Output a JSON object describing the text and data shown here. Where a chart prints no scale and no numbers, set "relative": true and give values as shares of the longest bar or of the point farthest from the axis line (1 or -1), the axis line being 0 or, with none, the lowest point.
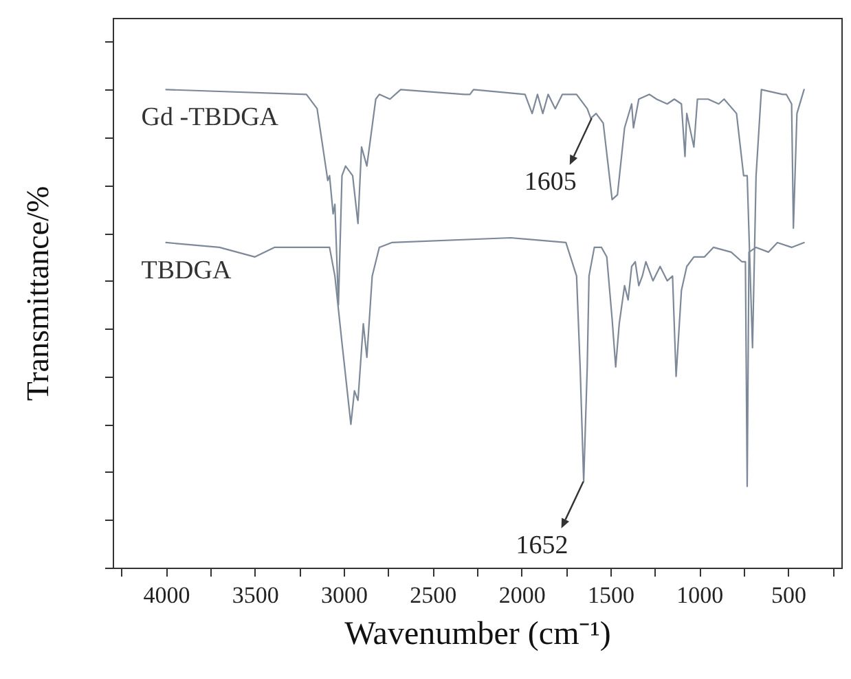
{
  "chart_data": {
    "type": "line",
    "relative": true,
    "xlabel": "Wavenumber (cm⁻¹)",
    "ylabel": "Transmittance/%",
    "xlim": [
      4300,
      200
    ],
    "xticks": [
      {
        "value": 4250,
        "label": null
      },
      4000,
      {
        "value": 3750,
        "label": null
      },
      3500,
      {
        "value": 3250,
        "label": null
      },
      3000,
      {
        "value": 2750,
        "label": null
      },
      2500,
      {
        "value": 2250,
        "label": null
      },
      2000,
      {
        "value": 1750,
        "label": null
      },
      1500,
      {
        "value": 1250,
        "label": null
      },
      1000,
      {
        "value": 750,
        "label": null
      },
      500,
      {
        "value": 250,
        "label": null
      }
    ],
    "series": [
      {
        "name": "Gd -TBDGA",
        "color": "#7d8898",
        "x": [
          4000,
          3210,
          3150,
          3090,
          3080,
          3060,
          3050,
          3030,
          3010,
          2990,
          2950,
          2920,
          2900,
          2870,
          2820,
          2800,
          2740,
          2680,
          2320,
          2290,
          2270,
          1980,
          1940,
          1910,
          1880,
          1850,
          1810,
          1770,
          1690,
          1630,
          1610,
          1580,
          1540,
          1490,
          1460,
          1420,
          1380,
          1370,
          1340,
          1280,
          1240,
          1180,
          1140,
          1100,
          1080,
          1070,
          1030,
          1010,
          950,
          890,
          860,
          790,
          750,
          730,
          700,
          680,
          650,
          530,
          510,
          480,
          470,
          450,
          410
        ],
        "values": [
          1.0,
          0.99,
          0.96,
          0.81,
          0.82,
          0.74,
          0.76,
          0.55,
          0.82,
          0.84,
          0.82,
          0.72,
          0.88,
          0.84,
          0.98,
          0.99,
          0.98,
          1.0,
          0.99,
          0.99,
          1.0,
          0.99,
          0.95,
          0.99,
          0.95,
          0.99,
          0.96,
          0.99,
          0.99,
          0.96,
          0.94,
          0.95,
          0.93,
          0.77,
          0.78,
          0.92,
          0.97,
          0.92,
          0.98,
          0.99,
          0.98,
          0.97,
          0.98,
          0.97,
          0.86,
          0.95,
          0.88,
          0.98,
          0.98,
          0.97,
          0.98,
          0.95,
          0.82,
          0.82,
          0.46,
          0.82,
          1.0,
          0.99,
          0.99,
          0.97,
          0.71,
          0.95,
          1.0
        ]
      },
      {
        "name": "TBDGA",
        "color": "#7d8898",
        "x": [
          4000,
          3700,
          3500,
          3390,
          3240,
          3080,
          3050,
          3010,
          2960,
          2940,
          2920,
          2890,
          2870,
          2840,
          2800,
          2730,
          2060,
          1750,
          1690,
          1670,
          1650,
          1630,
          1620,
          1590,
          1550,
          1520,
          1490,
          1470,
          1450,
          1420,
          1400,
          1380,
          1360,
          1340,
          1320,
          1300,
          1260,
          1220,
          1180,
          1150,
          1130,
          1100,
          1070,
          1030,
          970,
          920,
          820,
          760,
          740,
          730,
          720,
          680,
          610,
          560,
          480,
          410
        ],
        "values": [
          0.68,
          0.67,
          0.65,
          0.67,
          0.67,
          0.67,
          0.61,
          0.47,
          0.3,
          0.37,
          0.35,
          0.51,
          0.44,
          0.61,
          0.67,
          0.68,
          0.69,
          0.68,
          0.61,
          0.42,
          0.18,
          0.42,
          0.61,
          0.67,
          0.67,
          0.65,
          0.52,
          0.42,
          0.51,
          0.59,
          0.56,
          0.63,
          0.64,
          0.59,
          0.61,
          0.64,
          0.6,
          0.63,
          0.6,
          0.61,
          0.4,
          0.58,
          0.63,
          0.65,
          0.65,
          0.67,
          0.66,
          0.64,
          0.64,
          0.17,
          0.66,
          0.67,
          0.66,
          0.68,
          0.67,
          0.68
        ]
      }
    ],
    "annotations": [
      {
        "text": "1605",
        "x": 1605,
        "y": 0.94
      },
      {
        "text": "1652",
        "x": 1652,
        "y": 0.18
      }
    ]
  }
}
